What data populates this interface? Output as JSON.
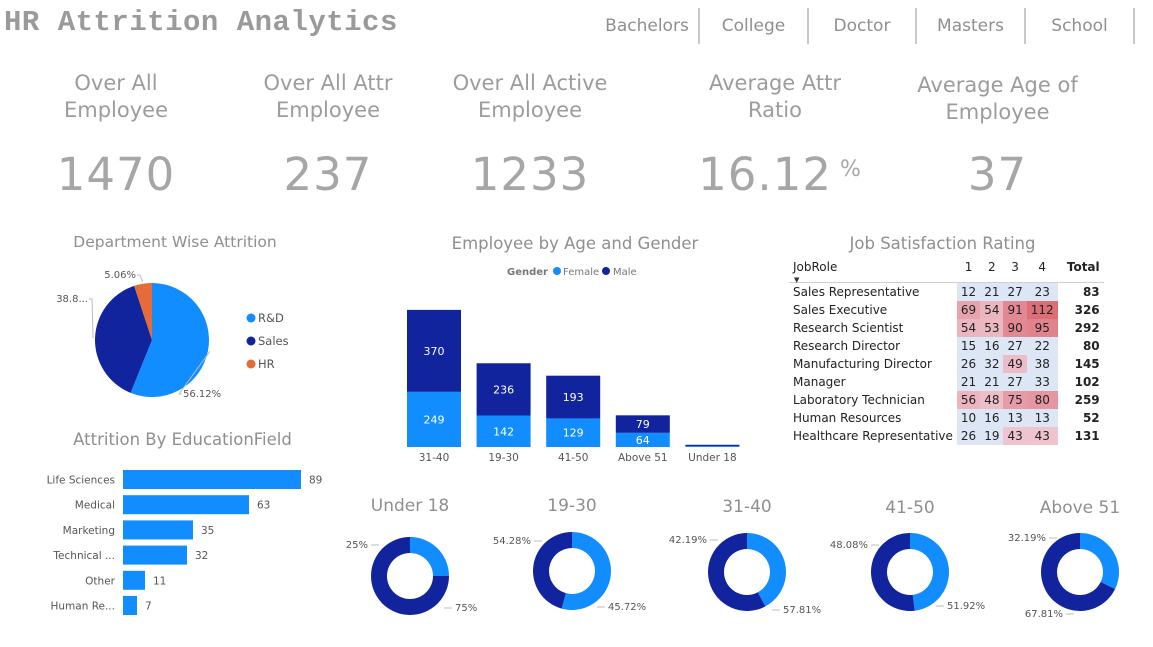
{
  "title": "HR Attrition Analytics",
  "slicer": [
    "Bachelors",
    "College",
    "Doctor",
    "Masters",
    "School"
  ],
  "kpis": [
    {
      "label": "Over All Employee",
      "value": "1470",
      "suffix": ""
    },
    {
      "label": "Over All Attr Employee",
      "value": "237",
      "suffix": ""
    },
    {
      "label": "Over All Active Employee",
      "value": "1233",
      "suffix": ""
    },
    {
      "label": "Average Attr Ratio",
      "value": "16.12",
      "suffix": "%"
    },
    {
      "label": "Average Age of Employee",
      "value": "37",
      "suffix": ""
    }
  ],
  "colors": {
    "light_blue": "#118DFF",
    "dark_blue": "#12239E",
    "orange": "#E66C37",
    "bar_blue": "#118DFF"
  },
  "chart_data": [
    {
      "type": "pie",
      "title": "Department Wise Attrition",
      "categories": [
        "R&D",
        "Sales",
        "HR"
      ],
      "values": [
        56.12,
        38.82,
        5.06
      ],
      "labels": [
        "56.12%",
        "38.8...",
        "5.06%"
      ],
      "legend": "right"
    },
    {
      "type": "bar",
      "title": "Employee by Age and Gender",
      "stacked": true,
      "legend_title": "Gender",
      "legend": "top",
      "categories": [
        "31-40",
        "19-30",
        "41-50",
        "Above 51",
        "Under 18"
      ],
      "series": [
        {
          "name": "Female",
          "values": [
            249,
            142,
            129,
            64,
            4
          ]
        },
        {
          "name": "Male",
          "values": [
            370,
            236,
            193,
            79,
            6
          ]
        }
      ]
    },
    {
      "type": "table",
      "title": "Job Satisfaction Rating",
      "columns": [
        "JobRole",
        "1",
        "2",
        "3",
        "4",
        "Total"
      ],
      "rows": [
        [
          "Sales Representative",
          12,
          21,
          27,
          23,
          83
        ],
        [
          "Sales Executive",
          69,
          54,
          91,
          112,
          326
        ],
        [
          "Research Scientist",
          54,
          53,
          90,
          95,
          292
        ],
        [
          "Research Director",
          15,
          16,
          27,
          22,
          80
        ],
        [
          "Manufacturing Director",
          26,
          32,
          49,
          38,
          145
        ],
        [
          "Manager",
          21,
          21,
          27,
          33,
          102
        ],
        [
          "Laboratory Technician",
          56,
          48,
          75,
          80,
          259
        ],
        [
          "Human Resources",
          10,
          16,
          13,
          13,
          52
        ],
        [
          "Healthcare Representative",
          26,
          19,
          43,
          43,
          131
        ]
      ]
    },
    {
      "type": "bar",
      "orientation": "horizontal",
      "title": "Attrition By EducationField",
      "categories": [
        "Life Sciences",
        "Medical",
        "Marketing",
        "Technical ...",
        "Other",
        "Human Re..."
      ],
      "values": [
        89,
        63,
        35,
        32,
        11,
        7
      ]
    },
    {
      "type": "pie",
      "donut": true,
      "title": "Under 18",
      "values": [
        25,
        75
      ],
      "labels": [
        "25%",
        "75%"
      ]
    },
    {
      "type": "pie",
      "donut": true,
      "title": "19-30",
      "values": [
        54.28,
        45.72
      ],
      "labels": [
        "54.28%",
        "45.72%"
      ]
    },
    {
      "type": "pie",
      "donut": true,
      "title": "31-40",
      "values": [
        42.19,
        57.81
      ],
      "labels": [
        "42.19%",
        "57.81%"
      ]
    },
    {
      "type": "pie",
      "donut": true,
      "title": "41-50",
      "values": [
        48.08,
        51.92
      ],
      "labels": [
        "48.08%",
        "51.92%"
      ]
    },
    {
      "type": "pie",
      "donut": true,
      "title": "Above 51",
      "values": [
        32.19,
        67.81
      ],
      "labels": [
        "32.19%",
        "67.81%"
      ]
    }
  ]
}
